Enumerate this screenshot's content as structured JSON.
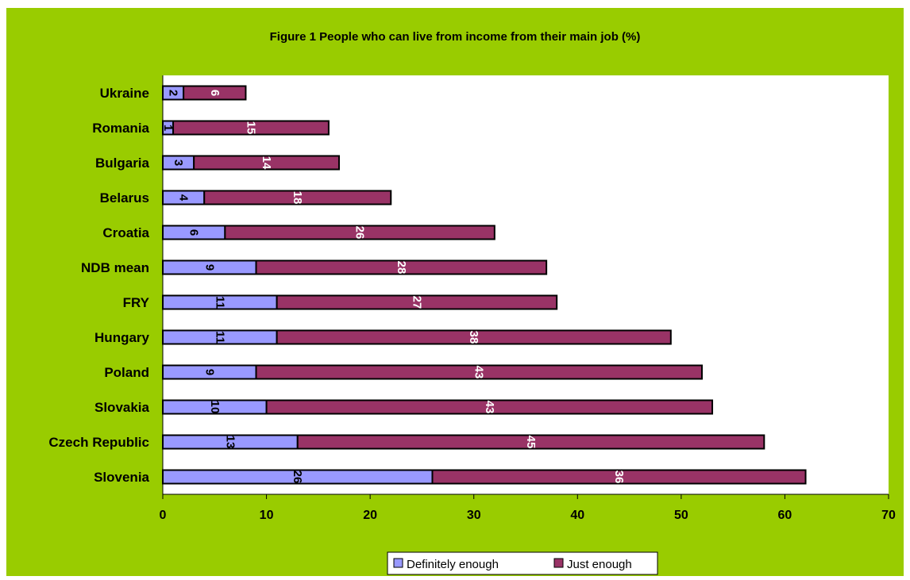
{
  "chart_data": {
    "type": "bar",
    "orientation": "horizontal",
    "stacked": true,
    "title": "Figure 1 People who can live from income from their main job (%)",
    "categories": [
      "Ukraine",
      "Romania",
      "Bulgaria",
      "Belarus",
      "Croatia",
      "NDB mean",
      "FRY",
      "Hungary",
      "Poland",
      "Slovakia",
      "Czech Republic",
      "Slovenia"
    ],
    "series": [
      {
        "name": "Definitely enough",
        "color": "#9999ff",
        "values": [
          2,
          1,
          3,
          4,
          6,
          9,
          11,
          11,
          9,
          10,
          13,
          26
        ]
      },
      {
        "name": "Just enough",
        "color": "#993366",
        "values": [
          6,
          15,
          14,
          18,
          26,
          28,
          27,
          38,
          43,
          43,
          45,
          36
        ]
      }
    ],
    "xlim": [
      0,
      70
    ],
    "xticks": [
      "0",
      "10",
      "20",
      "30",
      "40",
      "50",
      "60",
      "70"
    ],
    "grid": false,
    "legend_position": "bottom",
    "background_color": "#99cc00",
    "plot_background_color": "#ffffff"
  }
}
